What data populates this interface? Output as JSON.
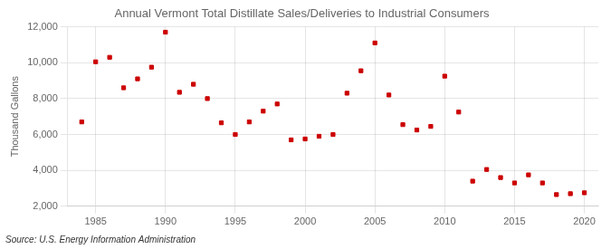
{
  "chart_data": {
    "type": "scatter",
    "title": "Annual Vermont Total Distillate Sales/Deliveries to Industrial Consumers",
    "ylabel": "Thousand Gallons",
    "annotation": "Source: U.S. Energy Information Administration",
    "x": [
      1984,
      1985,
      1986,
      1987,
      1988,
      1989,
      1990,
      1991,
      1992,
      1993,
      1994,
      1995,
      1996,
      1997,
      1998,
      1999,
      2000,
      2001,
      2002,
      2003,
      2004,
      2005,
      2006,
      2007,
      2008,
      2009,
      2010,
      2011,
      2012,
      2013,
      2014,
      2015,
      2016,
      2017,
      2018,
      2019,
      2020
    ],
    "values": [
      6700,
      10050,
      10300,
      8600,
      9100,
      9750,
      11700,
      8350,
      8800,
      8000,
      6650,
      6000,
      6700,
      7300,
      7700,
      5700,
      5750,
      5900,
      6000,
      8300,
      9550,
      11100,
      8200,
      6550,
      6250,
      6450,
      9250,
      7250,
      3400,
      4050,
      3600,
      3300,
      3750,
      3300,
      2650,
      2700,
      2750
    ],
    "color": "#cc0000",
    "marker": "square",
    "xlim": [
      1983,
      2021
    ],
    "xticks": [
      1985,
      1990,
      1995,
      2000,
      2005,
      2010,
      2015,
      2020
    ],
    "ylim": [
      2000,
      12000
    ],
    "yticks": [
      {
        "value": 2000,
        "label": "2,000"
      },
      {
        "value": 4000,
        "label": "4,000"
      },
      {
        "value": 6000,
        "label": "6,000"
      },
      {
        "value": 8000,
        "label": "8,000"
      },
      {
        "value": 10000,
        "label": "10,000"
      },
      {
        "value": 12000,
        "label": "12,000"
      }
    ],
    "grid": true
  }
}
